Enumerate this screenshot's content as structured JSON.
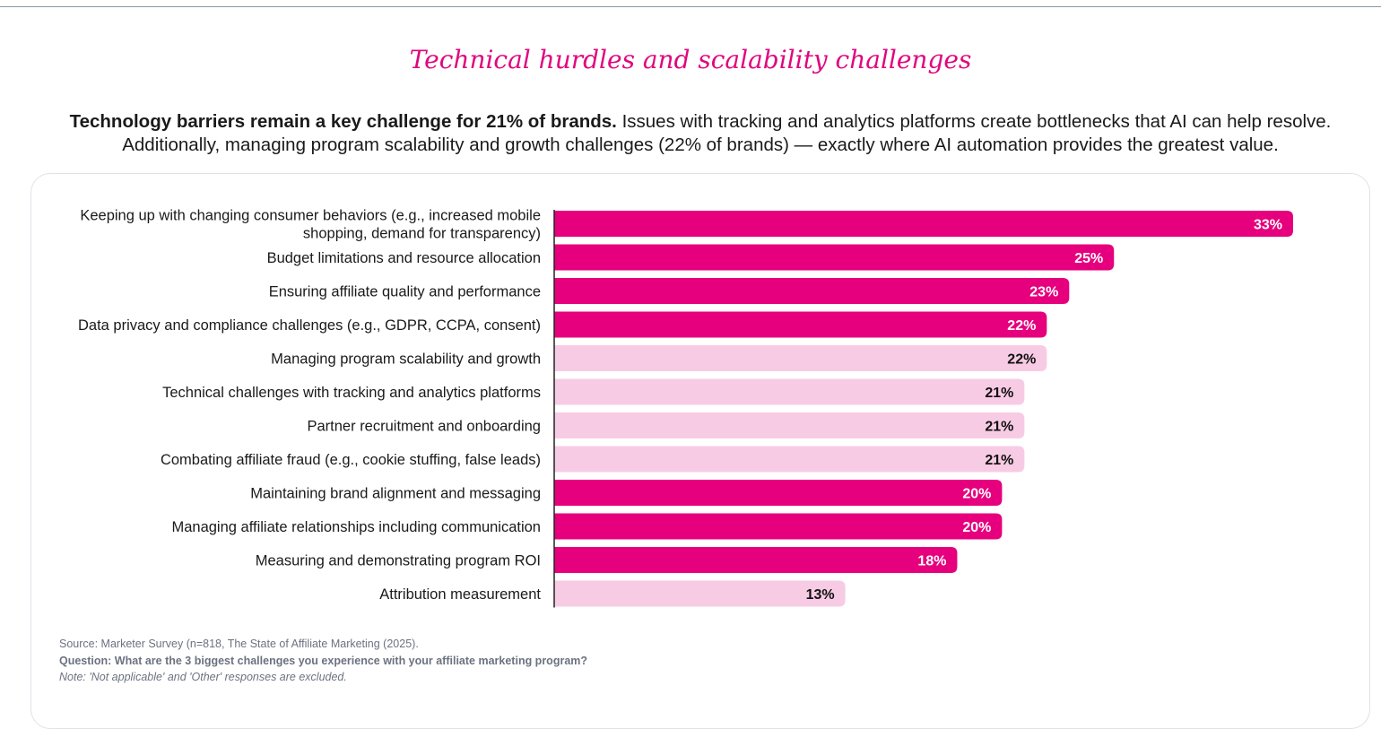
{
  "page": {
    "title": "Technical hurdles and scalability challenges",
    "intro_bold": "Technology barriers remain a key challenge for 21% of brands.",
    "intro_rest_line1": "Issues with tracking and analytics platforms create bottlenecks that AI can help resolve.",
    "intro_line2": "Additionally, managing program scalability and growth challenges (22% of brands) — exactly where AI automation provides the greatest value.",
    "source": "Source: Marketer Survey (n=818, The State of Affiliate Marketing (2025).",
    "question": "Question: What are the 3 biggest challenges you experience with your affiliate marketing program?",
    "note": "Note: 'Not applicable' and 'Other' responses are excluded."
  },
  "colors": {
    "highlight": "#e6007e",
    "muted": "#f8cbe5",
    "highlight_text": "#ffffff",
    "muted_text": "#111111",
    "axis": "#222222"
  },
  "chart_data": {
    "type": "bar",
    "orientation": "horizontal",
    "title": "",
    "xlabel": "",
    "ylabel": "",
    "xlim": [
      0,
      33
    ],
    "value_suffix": "%",
    "categories": [
      [
        "Keeping up with changing consumer behaviors (e.g., increased mobile",
        "shopping, demand for transparency)"
      ],
      [
        "Budget limitations and resource allocation"
      ],
      [
        "Ensuring affiliate quality and performance"
      ],
      [
        "Data privacy and compliance challenges (e.g., GDPR, CCPA, consent)"
      ],
      [
        "Managing program scalability and growth"
      ],
      [
        "Technical challenges with tracking and analytics platforms"
      ],
      [
        "Partner recruitment and onboarding"
      ],
      [
        "Combating affiliate fraud (e.g., cookie stuffing, false leads)"
      ],
      [
        "Maintaining brand alignment and messaging"
      ],
      [
        "Managing affiliate relationships including communication"
      ],
      [
        "Measuring and demonstrating program ROI"
      ],
      [
        "Attribution measurement"
      ]
    ],
    "values": [
      33,
      25,
      23,
      22,
      22,
      21,
      21,
      21,
      20,
      20,
      18,
      13
    ],
    "highlighted": [
      true,
      true,
      true,
      true,
      false,
      false,
      false,
      false,
      true,
      true,
      true,
      false
    ]
  }
}
